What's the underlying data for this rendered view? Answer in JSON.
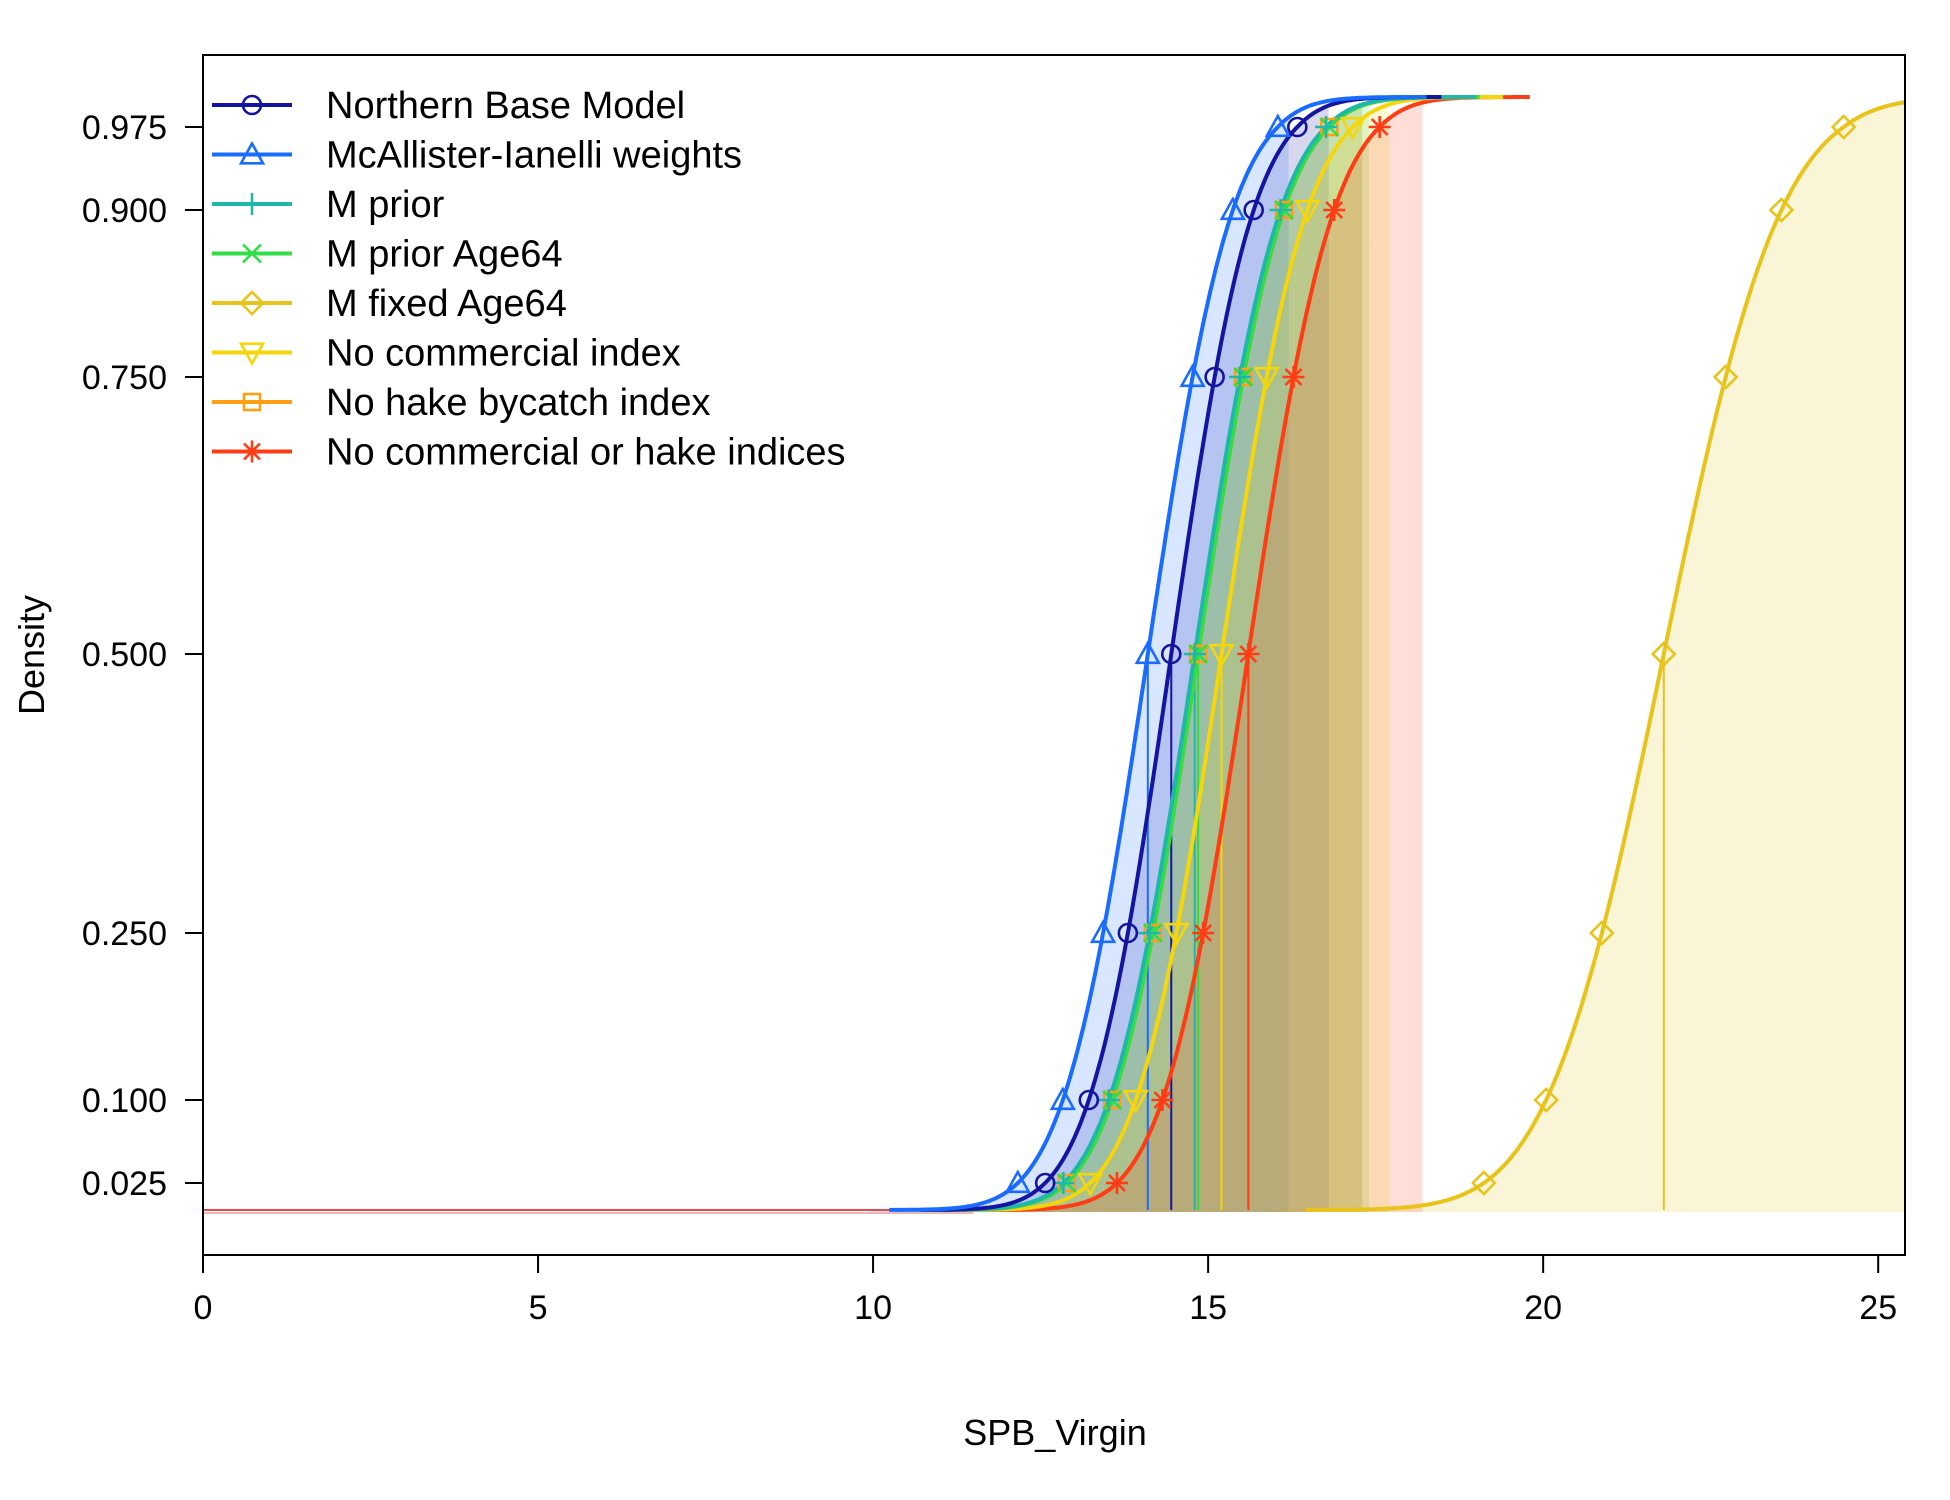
{
  "chart_data": {
    "type": "line",
    "title": "",
    "xlabel": "SPB_Virgin",
    "ylabel": "Density",
    "xlim": [
      0,
      25.4
    ],
    "x_ticks": [
      0,
      5,
      10,
      15,
      20,
      25
    ],
    "y_ticks": [
      0.025,
      0.1,
      0.25,
      0.5,
      0.75,
      0.9,
      0.975
    ],
    "y_tick_labels": [
      "0.025",
      "0.100",
      "0.250",
      "0.500",
      "0.750",
      "0.900",
      "0.975"
    ],
    "grid": false,
    "legend_position": "top-left",
    "series": [
      {
        "name": "Northern Base Model",
        "color": "#1414a0",
        "marker": "circle",
        "median": 14.45,
        "sd": 0.96,
        "shade_end": 16.8
      },
      {
        "name": "McAllister-Ianelli weights",
        "color": "#1a6bff",
        "marker": "triangle",
        "median": 14.1,
        "sd": 0.99,
        "shade_end": 16.2
      },
      {
        "name": "M prior",
        "color": "#1fb8a8",
        "marker": "plus",
        "median": 14.8,
        "sd": 1.0,
        "shade_end": 17.3
      },
      {
        "name": "M prior Age64",
        "color": "#33dd44",
        "marker": "cross",
        "median": 14.85,
        "sd": 1.0,
        "shade_end": 17.4
      },
      {
        "name": "M fixed Age64",
        "color": "#e8c31a",
        "marker": "diamond",
        "median": 21.8,
        "sd": 1.37,
        "shade_end": 25.4
      },
      {
        "name": "No commercial index",
        "color": "#f5d60a",
        "marker": "triangle-down",
        "median": 15.2,
        "sd": 1.0,
        "shade_end": 17.7
      },
      {
        "name": "No hake bycatch index",
        "color": "#ffa014",
        "marker": "square",
        "median": 14.85,
        "sd": 1.0,
        "shade_end": 17.3
      },
      {
        "name": "No commercial or hake indices",
        "color": "#ff3c14",
        "marker": "asterisk",
        "median": 15.6,
        "sd": 1.0,
        "shade_end": 18.2
      }
    ]
  }
}
